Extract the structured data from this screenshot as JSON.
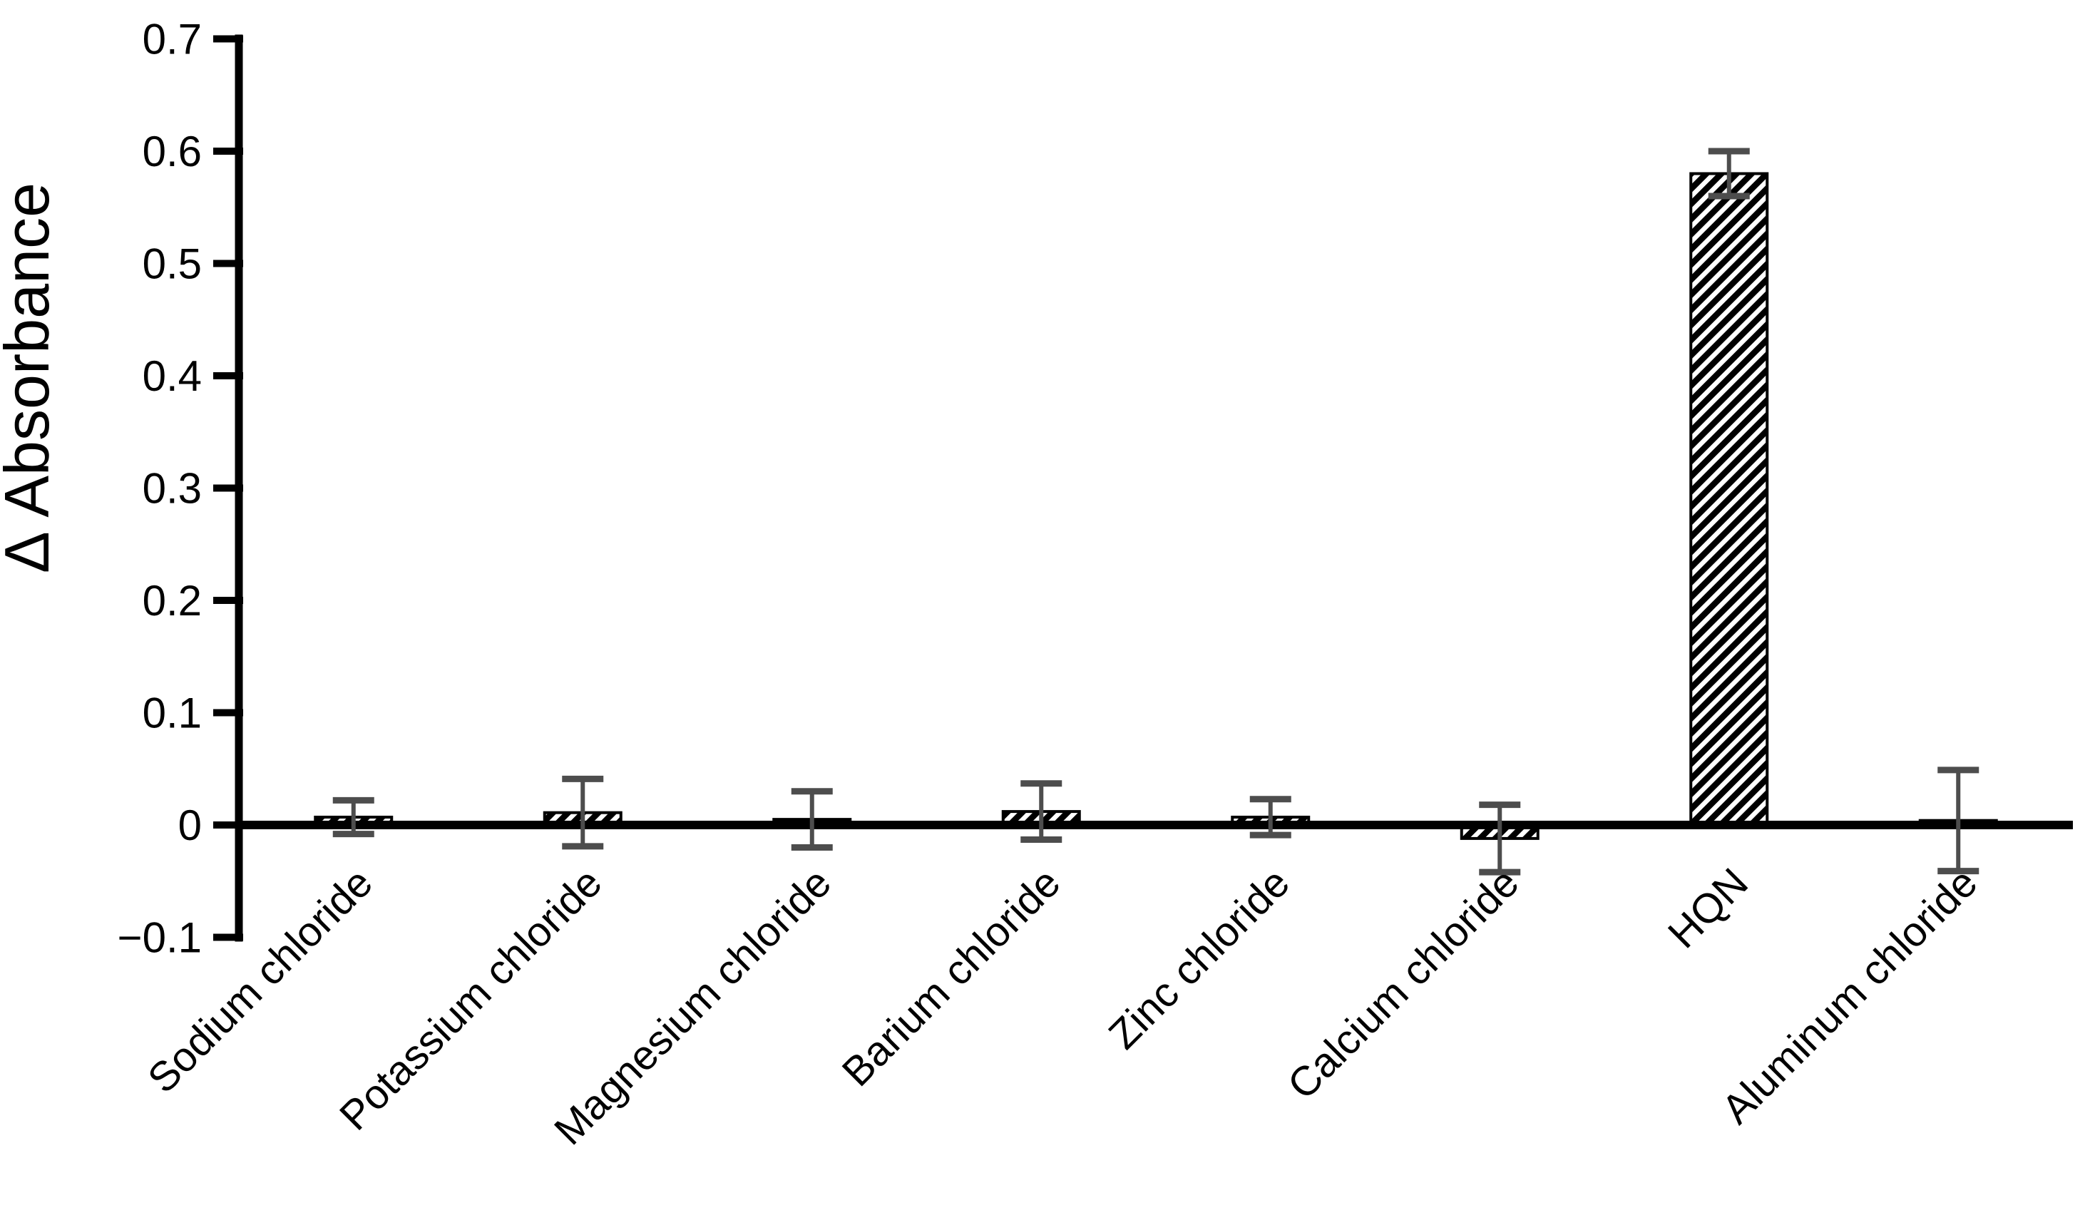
{
  "figure": {
    "background": "#ffffff"
  },
  "chart_data": {
    "type": "bar",
    "title": "",
    "xlabel": "",
    "ylabel": "Δ Absorbance",
    "ylim": [
      -0.1,
      0.7
    ],
    "ytick_step": 0.1,
    "ytick_labels": [
      "−0.1",
      "0",
      "0.1",
      "0.2",
      "0.3",
      "0.4",
      "0.5",
      "0.6",
      "0.7"
    ],
    "grid": false,
    "legend": "none",
    "categories": [
      "Sodium chloride",
      "Potassium chloride",
      "Magnesium chloride",
      "Barium chloride",
      "Zinc chloride",
      "Calcium chloride",
      "HQN",
      "Aluminum chloride"
    ],
    "series": [
      {
        "name": "Δ Absorbance",
        "values": [
          0.007,
          0.011,
          0.005,
          0.012,
          0.007,
          -0.012,
          0.58,
          0.004
        ],
        "errors": [
          0.015,
          0.03,
          0.025,
          0.025,
          0.016,
          0.03,
          0.02,
          0.045
        ]
      }
    ],
    "bar_style": {
      "fill_pattern": "diagonal-hatch-up",
      "pattern_foreground": "#000000",
      "pattern_background": "#ffffff",
      "border_color": "#000000"
    },
    "error_bar_color": "#4d4d4d",
    "axis_color": "#000000",
    "text_color": "#000000"
  }
}
